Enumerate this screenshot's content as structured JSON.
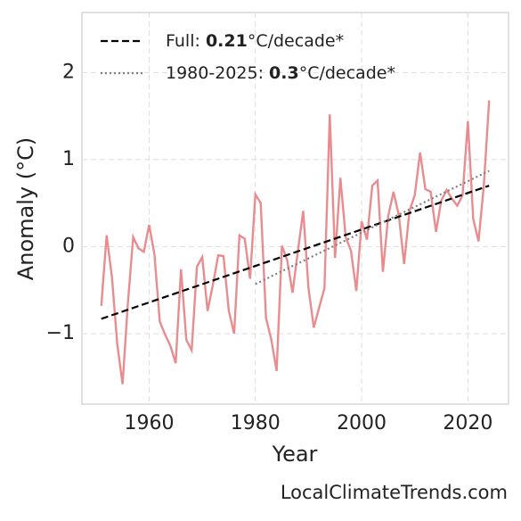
{
  "chart_data": {
    "type": "line",
    "xlabel": "Year",
    "ylabel": "Anomaly (°C)",
    "watermark": "LocalClimateTrends.com",
    "xlim": [
      1947.35,
      2027.65
    ],
    "ylim": [
      -1.81,
      2.69
    ],
    "xticks": [
      1960,
      1980,
      2000,
      2020
    ],
    "yticks": [
      {
        "value": -1,
        "label": "−1"
      },
      0,
      1,
      2
    ],
    "grid": true,
    "legend": "upper left",
    "series": [
      {
        "color": "#e8868a",
        "style": "solid",
        "x": [
          1951,
          1952,
          1953,
          1954,
          1955,
          1956,
          1957,
          1958,
          1959,
          1960,
          1961,
          1962,
          1963,
          1964,
          1965,
          1966,
          1967,
          1968,
          1969,
          1970,
          1971,
          1972,
          1973,
          1974,
          1975,
          1976,
          1977,
          1978,
          1979,
          1980,
          1981,
          1982,
          1983,
          1984,
          1985,
          1986,
          1987,
          1988,
          1989,
          1990,
          1991,
          1992,
          1993,
          1994,
          1995,
          1996,
          1997,
          1998,
          1999,
          2000,
          2001,
          2002,
          2003,
          2004,
          2005,
          2006,
          2007,
          2008,
          2009,
          2010,
          2011,
          2012,
          2013,
          2014,
          2015,
          2016,
          2017,
          2018,
          2019,
          2020,
          2021,
          2022,
          2023,
          2024
        ],
        "values": [
          -0.68,
          0.13,
          -0.35,
          -1.12,
          -1.58,
          -0.65,
          0.11,
          -0.02,
          -0.06,
          0.25,
          -0.09,
          -0.86,
          -1.01,
          -1.14,
          -1.34,
          -0.26,
          -1.07,
          -1.19,
          -0.23,
          -0.12,
          -0.74,
          -0.44,
          -0.1,
          -0.11,
          -0.74,
          -1.0,
          0.13,
          0.09,
          -0.37,
          0.6,
          0.5,
          -0.82,
          -1.07,
          -1.43,
          0.01,
          -0.16,
          -0.53,
          -0.05,
          0.41,
          -0.48,
          -0.93,
          -0.7,
          -0.48,
          1.52,
          -0.13,
          0.79,
          0.11,
          -0.05,
          -0.51,
          0.29,
          0.08,
          0.7,
          0.76,
          -0.29,
          0.35,
          0.63,
          0.36,
          -0.2,
          0.41,
          0.59,
          1.08,
          0.66,
          0.63,
          0.17,
          0.53,
          0.65,
          0.55,
          0.47,
          0.59,
          1.44,
          0.32,
          0.06,
          0.7,
          1.68
        ]
      },
      {
        "name": [
          "Full: ",
          "0.21",
          "°C/decade*"
        ],
        "color": "#000000",
        "style": "dashed",
        "x": [
          1951,
          2024
        ],
        "values": [
          -0.83,
          0.7
        ]
      },
      {
        "name": [
          "1980-2025: ",
          "0.3",
          "°C/decade*"
        ],
        "color": "#808080",
        "style": "dotted",
        "x": [
          1980,
          2024
        ],
        "values": [
          -0.43,
          0.87
        ]
      }
    ]
  }
}
